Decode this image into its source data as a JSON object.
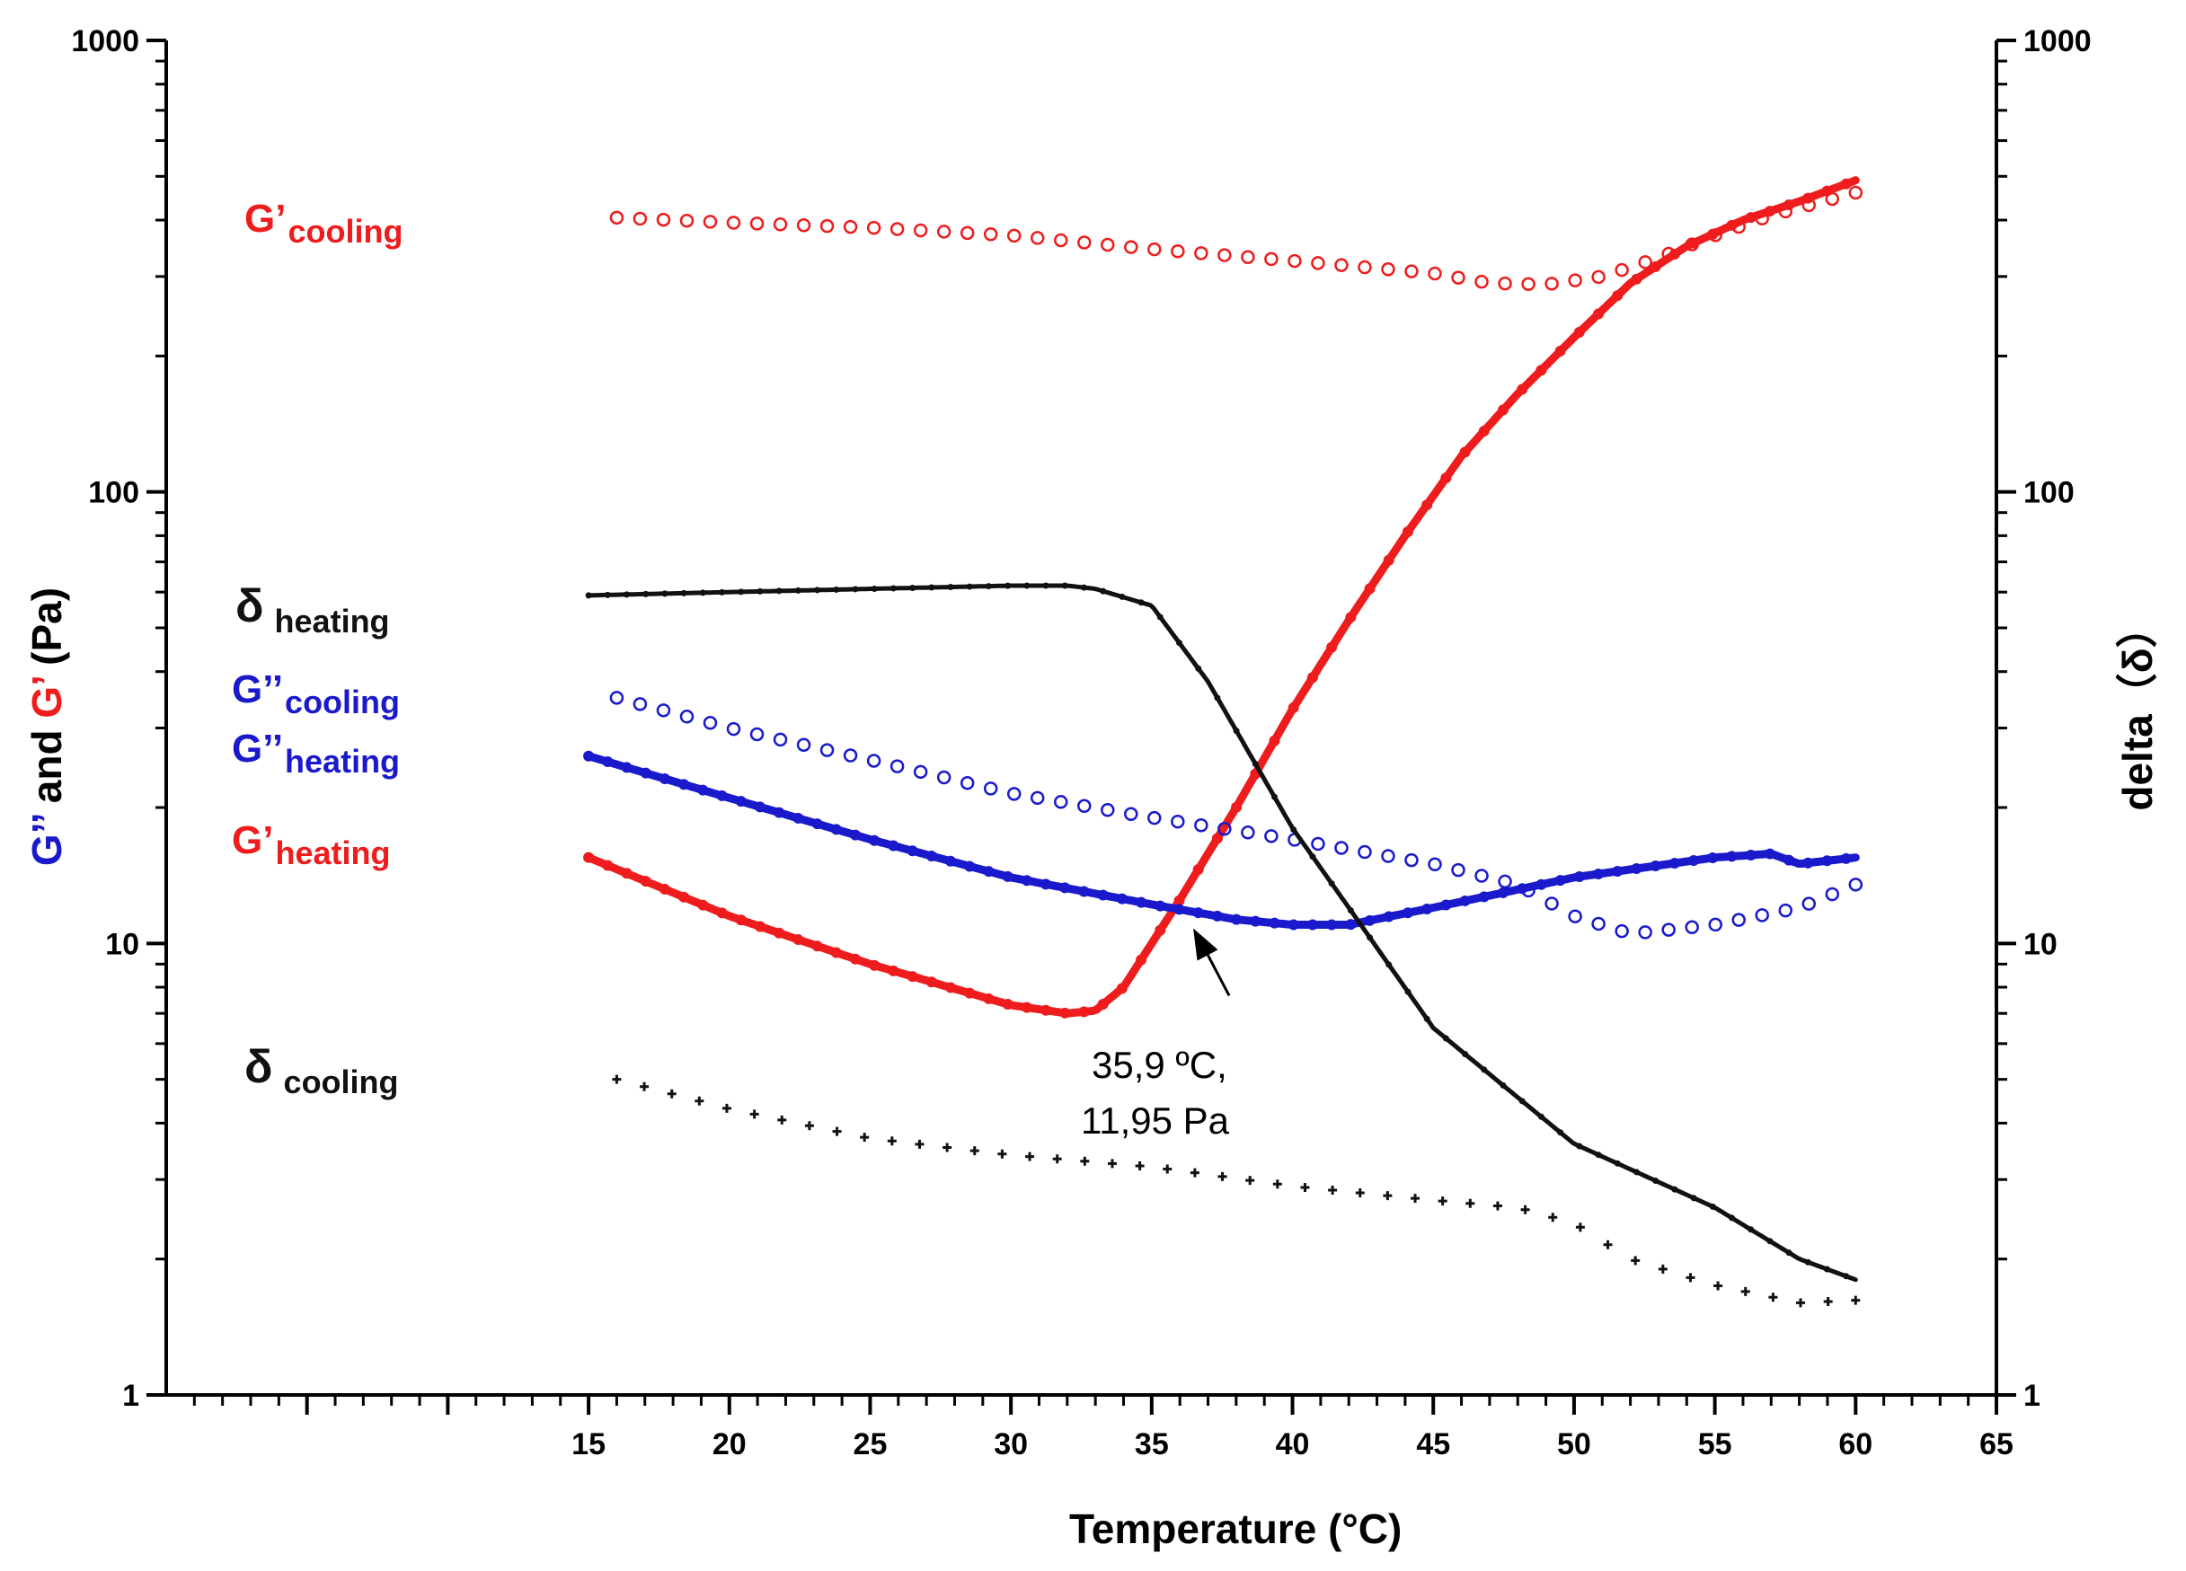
{
  "chart_data": {
    "type": "scatter",
    "x_label": "Temperature (°C)",
    "y_left_label": {
      "parts": [
        {
          "text": "G’’",
          "color": "#1a1acc"
        },
        {
          "text": " and ",
          "color": "#000000"
        },
        {
          "text": "G’",
          "color": "#ee1c1c"
        },
        {
          "text": " (Pa)",
          "color": "#000000"
        }
      ]
    },
    "y_right_label": "delta（δ）",
    "x_range": [
      0,
      65
    ],
    "x_ticks": [
      15,
      20,
      25,
      30,
      35,
      40,
      45,
      50,
      55,
      60,
      65
    ],
    "y_scale": "log",
    "y_range": [
      1,
      1000
    ],
    "y_ticks": [
      1,
      10,
      100,
      1000
    ],
    "y_tick_labels": [
      "1",
      "10",
      "100",
      "1000"
    ],
    "y_right_ticks": [
      1,
      10,
      100,
      1000
    ],
    "y_right_tick_labels": [
      "1",
      "10",
      "100",
      "1000"
    ],
    "grid": false,
    "colors": {
      "G_prime": "#ee1c1c",
      "G_double_prime": "#1a1acc",
      "delta": "#111111"
    },
    "series": [
      {
        "id": "g1_cool",
        "axis": "left",
        "marker": "hollow-circle",
        "color": "#ee1c1c",
        "label": {
          "main": "G’",
          "sub": "cooling"
        },
        "x": [
          16,
          20,
          25,
          30,
          35,
          40,
          45,
          47,
          49,
          51,
          53,
          55,
          57,
          60
        ],
        "y": [
          405,
          395,
          385,
          370,
          345,
          325,
          305,
          290,
          288,
          300,
          330,
          370,
          410,
          460
        ]
      },
      {
        "id": "g1_heat",
        "axis": "left",
        "marker": "dense-line",
        "color": "#ee1c1c",
        "label": {
          "main": "G’",
          "sub": "heating"
        },
        "x": [
          15,
          20,
          25,
          30,
          32,
          33,
          34,
          35,
          36,
          38,
          40,
          42,
          44,
          46,
          48,
          50,
          52,
          54,
          56,
          58,
          60
        ],
        "y": [
          15.5,
          11.5,
          9.0,
          7.3,
          7.0,
          7.1,
          8.0,
          10.0,
          12.5,
          20,
          33,
          52,
          80,
          120,
          165,
          220,
          290,
          350,
          400,
          440,
          490
        ]
      },
      {
        "id": "g2_cool",
        "axis": "left",
        "marker": "hollow-circle",
        "color": "#1a1acc",
        "label": {
          "main": "G’’",
          "sub": "cooling"
        },
        "x": [
          16,
          20,
          25,
          30,
          35,
          40,
          45,
          48,
          50,
          52,
          55,
          58,
          60
        ],
        "y": [
          35,
          30,
          25.5,
          21.5,
          19,
          17,
          15,
          13.5,
          11.5,
          10.5,
          11,
          12,
          13.5
        ]
      },
      {
        "id": "g2_heat",
        "axis": "left",
        "marker": "dense-line",
        "color": "#1a1acc",
        "label": {
          "main": "G’’",
          "sub": "heating"
        },
        "x": [
          15,
          20,
          25,
          30,
          35,
          38,
          40,
          42,
          45,
          50,
          55,
          57,
          58,
          60
        ],
        "y": [
          26,
          21,
          17,
          14,
          12.2,
          11.3,
          11.0,
          11.0,
          12.0,
          14.0,
          15.5,
          15.8,
          15.0,
          15.5
        ]
      },
      {
        "id": "d_heat",
        "axis": "right",
        "marker": "dense-line",
        "color": "#111111",
        "label": {
          "main": "δ",
          "sub": "heating"
        },
        "x": [
          15,
          20,
          25,
          30,
          32,
          33,
          35,
          37,
          40,
          42,
          45,
          50,
          55,
          58,
          60
        ],
        "y": [
          59,
          60,
          61,
          62,
          62,
          61,
          56,
          38,
          18,
          12,
          6.5,
          3.6,
          2.6,
          2.0,
          1.8
        ]
      },
      {
        "id": "d_cool",
        "axis": "right",
        "marker": "plus",
        "color": "#111111",
        "label": {
          "main": "δ",
          "sub": "cooling"
        },
        "x": [
          16,
          20,
          25,
          30,
          35,
          40,
          45,
          48,
          50,
          52,
          55,
          58,
          60
        ],
        "y": [
          5.0,
          4.3,
          3.7,
          3.4,
          3.2,
          2.9,
          2.7,
          2.6,
          2.4,
          2.0,
          1.75,
          1.6,
          1.62
        ]
      }
    ],
    "annotations": [
      {
        "lines": [
          "35,9 ºC,",
          "11,95 Pa"
        ],
        "x": 35.9,
        "y": 11.95
      }
    ]
  }
}
